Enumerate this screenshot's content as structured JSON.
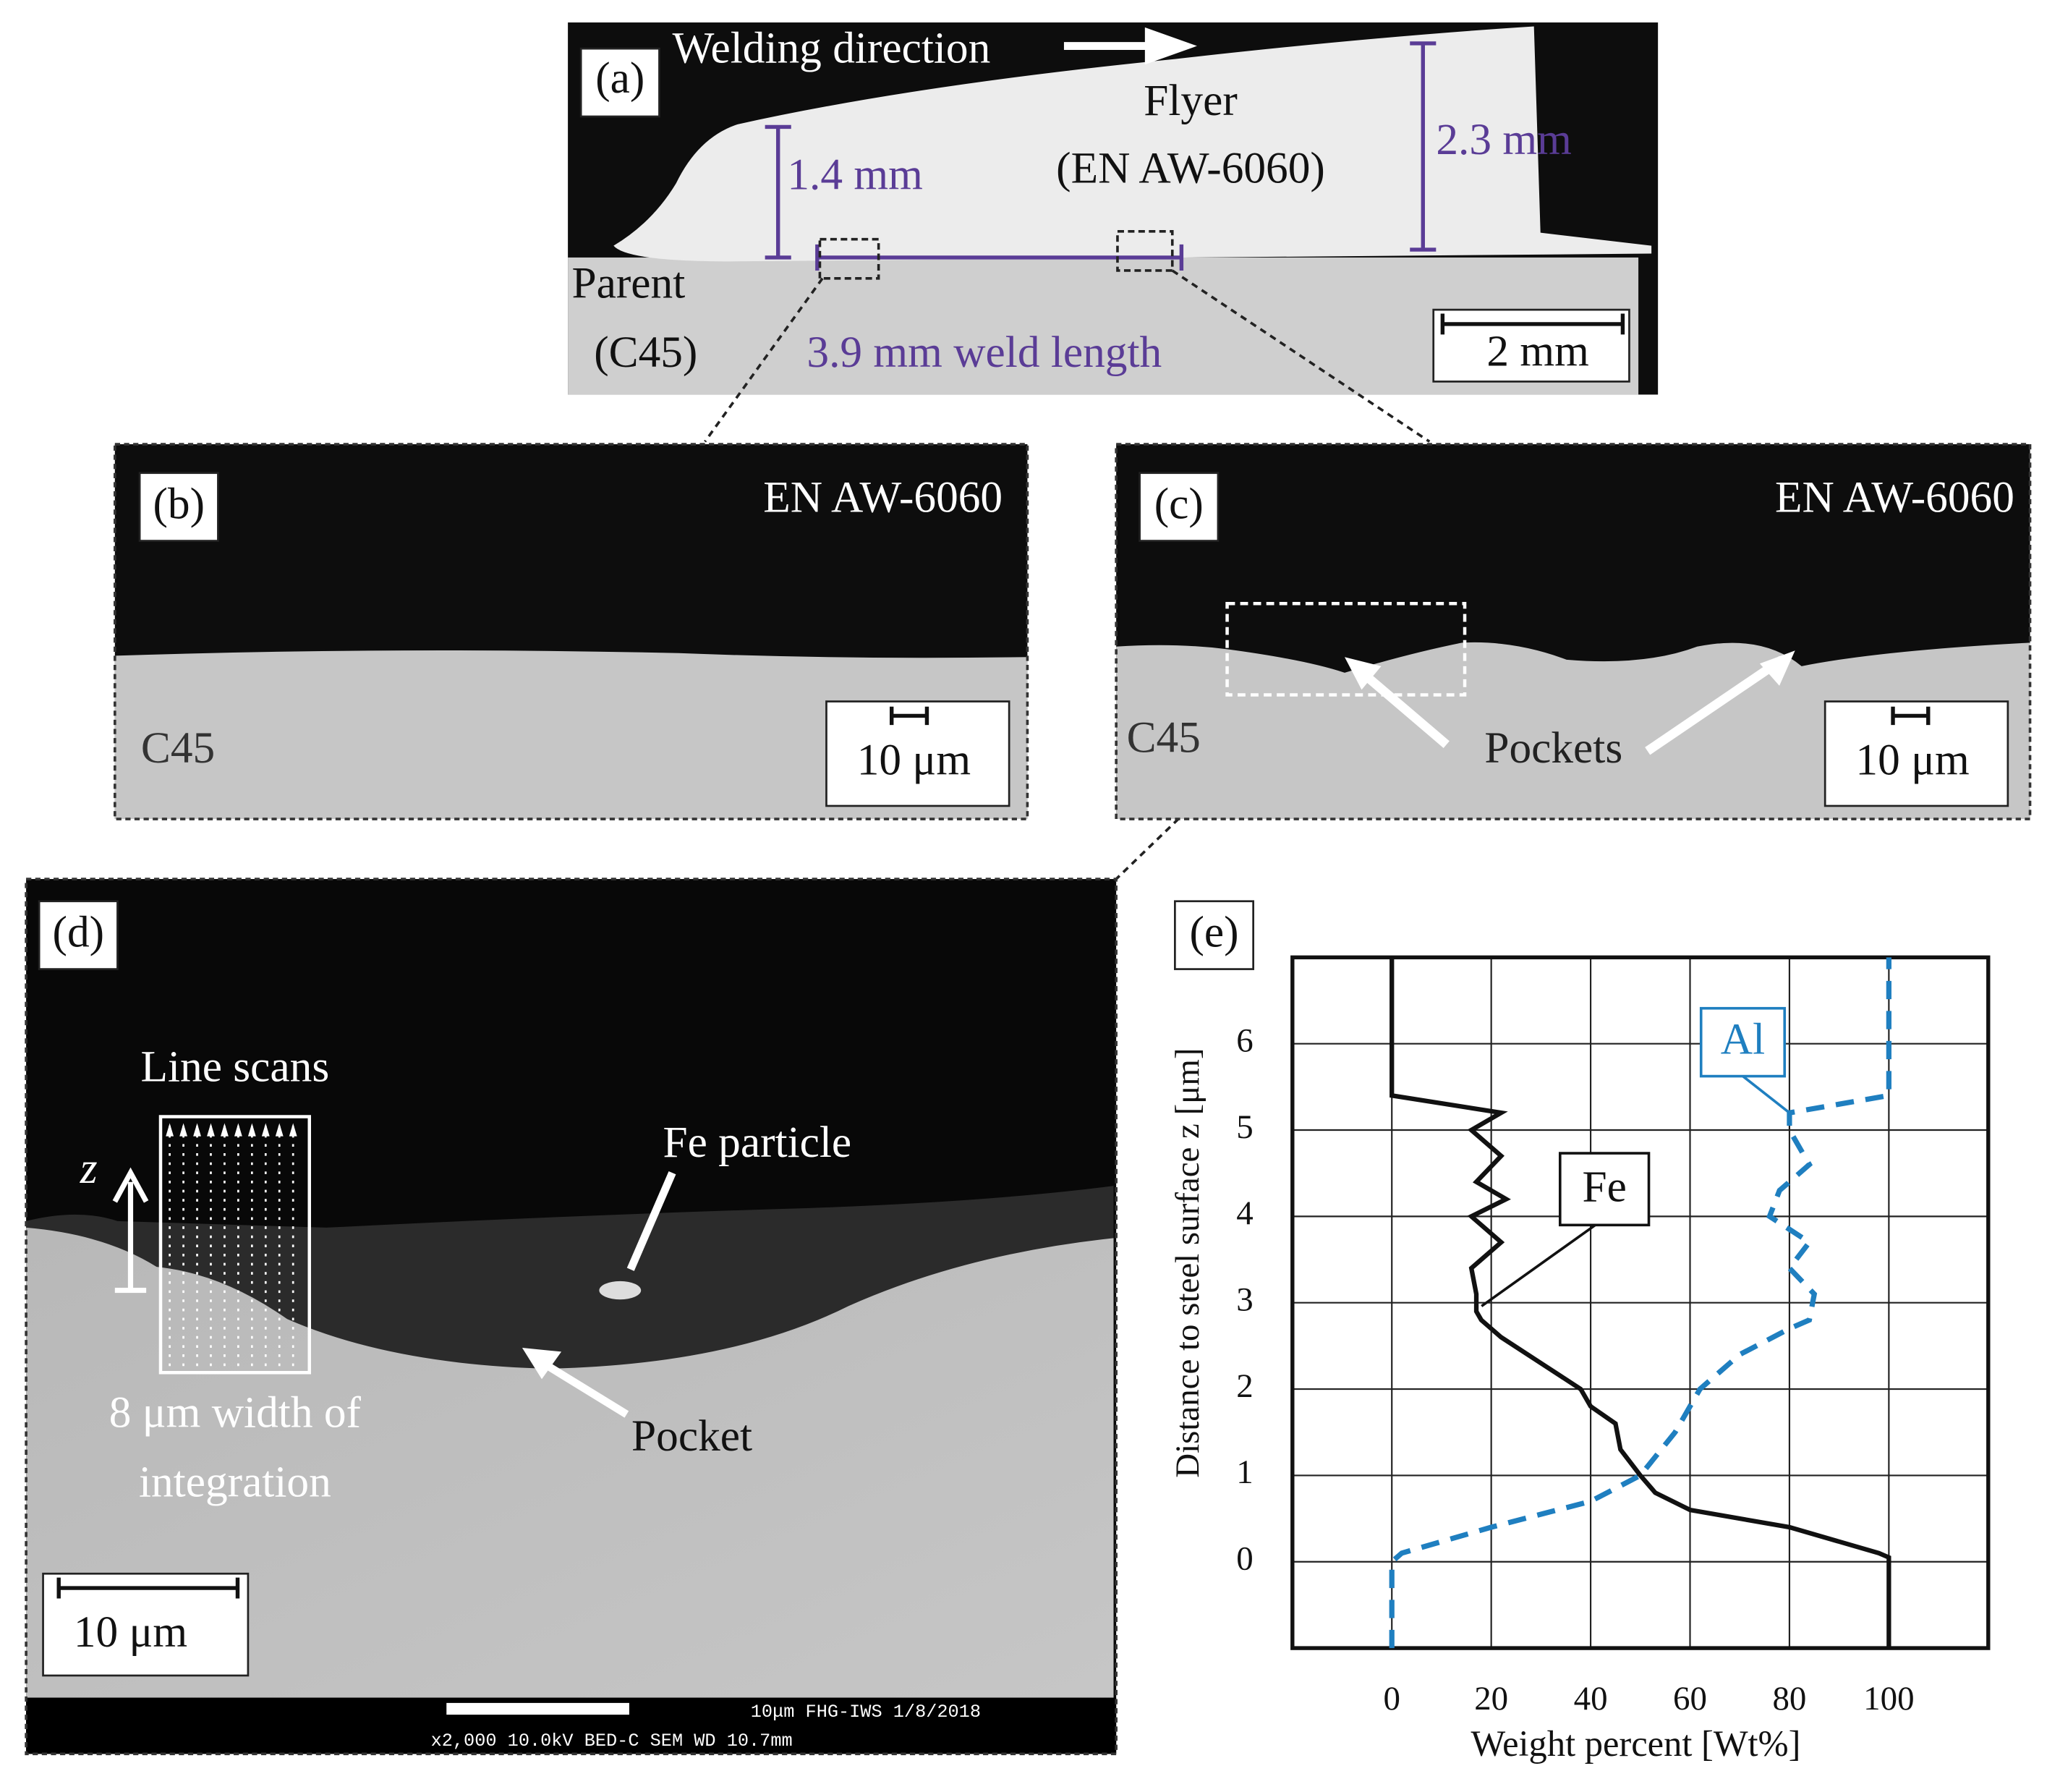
{
  "panel_a": {
    "label": "(a)",
    "direction": "Welding direction",
    "flyer": "Flyer",
    "flyer_alloy": "(EN AW-6060)",
    "flyer_thickness_left": "1.4 mm",
    "flyer_thickness_right": "2.3 mm",
    "parent": "Parent",
    "parent_alloy": "(C45)",
    "weld_length": "3.9 mm weld length",
    "scale": "2 mm"
  },
  "panel_b": {
    "label": "(b)",
    "top": "EN AW-6060",
    "bottom": "C45",
    "scale": "10 μm"
  },
  "panel_c": {
    "label": "(c)",
    "top": "EN AW-6060",
    "bottom": "C45",
    "pockets": "Pockets",
    "scale": "10 μm"
  },
  "panel_d": {
    "label": "(d)",
    "line_scans": "Line scans",
    "z": "z",
    "fe_particle": "Fe particle",
    "pocket": "Pocket",
    "width_1": "8 μm width of",
    "width_2": "integration",
    "scale": "10 μm",
    "sem_1": "10μm  FHG-IWS  1/8/2018",
    "sem_2": "x2,000     10.0kV BED-C   SEM    WD 10.7mm"
  },
  "chart_data": {
    "type": "line",
    "label": "(e)",
    "x_label": "Weight percent [Wt%]",
    "y_label": "Distance to steel surface z [μm]",
    "xlim": [
      -20,
      120
    ],
    "ylim": [
      -1,
      7
    ],
    "xticks": [
      0,
      20,
      40,
      60,
      80,
      100
    ],
    "yticks": [
      0,
      1,
      2,
      3,
      4,
      5,
      6
    ],
    "grid": true,
    "series": [
      {
        "name": "Fe",
        "color": "#111111",
        "dash": false,
        "x": [
          100,
          100,
          98,
          80,
          60,
          53,
          50,
          46,
          45,
          40,
          38,
          30,
          22,
          18,
          17,
          17,
          16,
          22,
          16,
          23,
          17,
          22,
          16,
          22,
          0,
          0
        ],
        "values": [
          -1,
          0.05,
          0.1,
          0.4,
          0.6,
          0.8,
          1.0,
          1.3,
          1.6,
          1.8,
          2.0,
          2.3,
          2.6,
          2.8,
          2.9,
          3.1,
          3.4,
          3.7,
          4.0,
          4.2,
          4.4,
          4.7,
          5.0,
          5.2,
          5.4,
          7
        ]
      },
      {
        "name": "Al",
        "color": "#1f7fc0",
        "dash": true,
        "x": [
          0,
          0,
          2,
          20,
          40,
          50,
          57,
          62,
          70,
          80,
          84,
          85,
          80,
          84,
          76,
          78,
          84,
          80,
          80,
          100,
          100
        ],
        "values": [
          -1,
          0,
          0.1,
          0.4,
          0.7,
          1.0,
          1.5,
          2.0,
          2.4,
          2.7,
          2.8,
          3.1,
          3.4,
          3.7,
          4.0,
          4.3,
          4.6,
          5.0,
          5.2,
          5.4,
          7
        ]
      }
    ]
  }
}
